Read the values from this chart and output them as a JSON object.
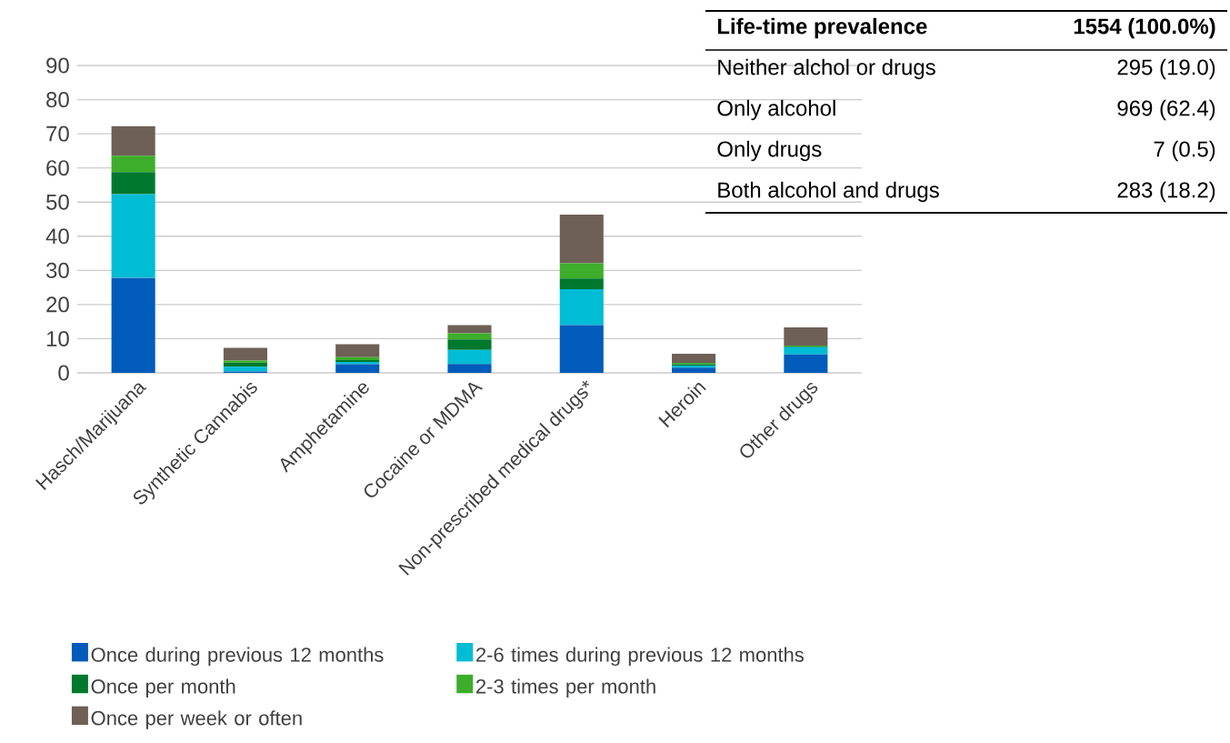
{
  "chart_data": [
    {
      "type": "bar",
      "stacked": true,
      "categories": [
        "Hasch/Marijuana",
        "Synthetic Cannabis",
        "Amphetamine",
        "Cocaine or MDMA",
        "Non-prescribed medical drugs*",
        "Heroin",
        "Other drugs"
      ],
      "series": [
        {
          "name": "Once during previous 12 months",
          "color": "#005bbb",
          "values": [
            27.8,
            0.4,
            2.5,
            2.6,
            14.0,
            1.5,
            5.4
          ]
        },
        {
          "name": "2-6 times during previous 12 months",
          "color": "#00bcd4",
          "values": [
            24.5,
            1.4,
            0.7,
            4.1,
            10.5,
            0.6,
            2.1
          ]
        },
        {
          "name": "Once per month",
          "color": "#00782e",
          "values": [
            6.5,
            1.2,
            0.5,
            3.1,
            3.1,
            0.4,
            0.2
          ]
        },
        {
          "name": "2-3 times per month",
          "color": "#3dae2b",
          "values": [
            4.8,
            0.6,
            0.9,
            1.8,
            4.5,
            0.4,
            0.3
          ]
        },
        {
          "name": "Once per week or often",
          "color": "#6e5f57",
          "values": [
            8.6,
            3.7,
            3.8,
            2.4,
            14.2,
            2.7,
            5.3
          ]
        }
      ],
      "ylim": [
        0,
        90
      ],
      "yticks": [
        0,
        10,
        20,
        30,
        40,
        50,
        60,
        70,
        80,
        90
      ],
      "grid": "y",
      "legend": "bottom"
    },
    {
      "type": "other",
      "title": "Life-time prevalence",
      "subtitle": "1554 (100.0%)",
      "annotations": [
        "Neither alchol or drugs",
        "295 (19.0)",
        "Only alcohol",
        "969 (62.4)",
        "Only drugs",
        "7 (0.5)",
        "Both alcohol and drugs",
        "283 (18.2)"
      ]
    }
  ]
}
